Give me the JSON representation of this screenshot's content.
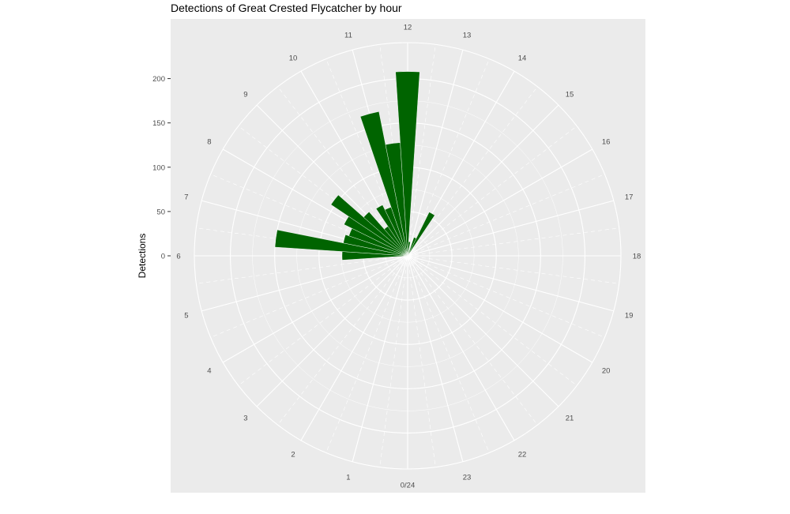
{
  "chart_data": {
    "type": "bar",
    "coord": "polar",
    "title": "Detections of Great Crested Flycatcher by hour",
    "xlabel": "",
    "ylabel": "Detections",
    "y_ticks": [
      0,
      50,
      100,
      150,
      200
    ],
    "ylim": [
      0,
      225
    ],
    "hour_labels": [
      "0/24",
      "1",
      "2",
      "3",
      "4",
      "5",
      "6",
      "7",
      "8",
      "9",
      "10",
      "11",
      "12",
      "13",
      "14",
      "15",
      "16",
      "17",
      "18",
      "19",
      "20",
      "21",
      "22",
      "23"
    ],
    "categories": [
      0,
      1,
      2,
      3,
      4,
      5,
      6,
      7,
      8,
      9,
      10,
      11,
      12,
      13,
      14,
      15,
      16,
      17,
      18,
      19,
      20,
      21,
      22,
      23
    ],
    "values": [
      0,
      0,
      0,
      0,
      0,
      0,
      0,
      0,
      0,
      0,
      0,
      0,
      0,
      0,
      0,
      0,
      0,
      0,
      0,
      0,
      0,
      0,
      0,
      0
    ],
    "bars": [
      {
        "hour": 6.0,
        "value": 74
      },
      {
        "hour": 6.5,
        "value": 150
      },
      {
        "hour": 7.0,
        "value": 74
      },
      {
        "hour": 7.5,
        "value": 70
      },
      {
        "hour": 8.0,
        "value": 80
      },
      {
        "hour": 8.5,
        "value": 104
      },
      {
        "hour": 9.0,
        "value": 66
      },
      {
        "hour": 9.5,
        "value": 40
      },
      {
        "hour": 10.0,
        "value": 64
      },
      {
        "hour": 10.5,
        "value": 58
      },
      {
        "hour": 11.0,
        "value": 166
      },
      {
        "hour": 11.5,
        "value": 128
      },
      {
        "hour": 12.0,
        "value": 208
      },
      {
        "hour": 12.5,
        "value": 16
      },
      {
        "hour": 13.0,
        "value": 6
      },
      {
        "hour": 13.5,
        "value": 22
      },
      {
        "hour": 14.0,
        "value": 55
      }
    ],
    "bar_color": "#006400",
    "panel_color": "#ebebeb",
    "grid_color": "#ffffff"
  }
}
